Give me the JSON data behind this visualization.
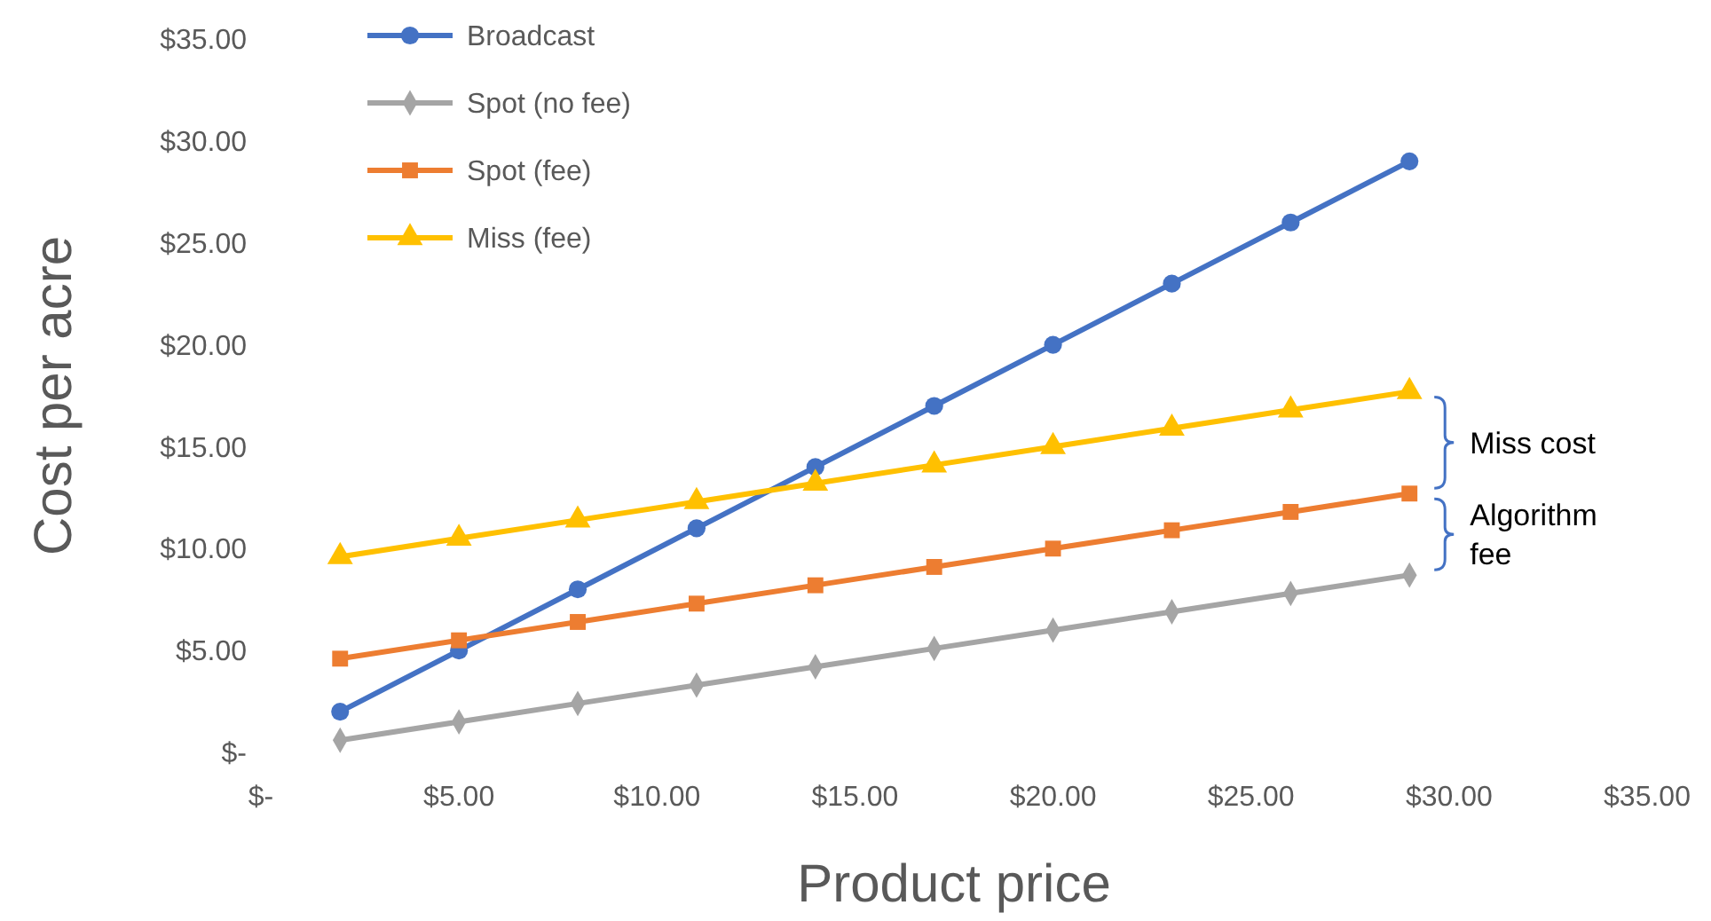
{
  "chart_data": {
    "type": "line",
    "xlabel": "Product price",
    "ylabel": "Cost per acre",
    "x": [
      2,
      5,
      8,
      11,
      14,
      17,
      20,
      23,
      26,
      29
    ],
    "xlim": [
      0,
      35
    ],
    "ylim": [
      0,
      35
    ],
    "xticks": [
      {
        "value": 0,
        "label": "$-"
      },
      {
        "value": 5,
        "label": "$5.00"
      },
      {
        "value": 10,
        "label": "$10.00"
      },
      {
        "value": 15,
        "label": "$15.00"
      },
      {
        "value": 20,
        "label": "$20.00"
      },
      {
        "value": 25,
        "label": "$25.00"
      },
      {
        "value": 30,
        "label": "$30.00"
      },
      {
        "value": 35,
        "label": "$35.00"
      }
    ],
    "yticks": [
      {
        "value": 0,
        "label": "$-"
      },
      {
        "value": 5,
        "label": "$5.00"
      },
      {
        "value": 10,
        "label": "$10.00"
      },
      {
        "value": 15,
        "label": "$15.00"
      },
      {
        "value": 20,
        "label": "$20.00"
      },
      {
        "value": 25,
        "label": "$25.00"
      },
      {
        "value": 30,
        "label": "$30.00"
      },
      {
        "value": 35,
        "label": "$35.00"
      }
    ],
    "grid": false,
    "legend": "top left",
    "line_style": "solid",
    "series": [
      {
        "name": "Broadcast",
        "color": "#4472c4",
        "marker": "circle",
        "values": [
          2,
          5,
          8,
          11,
          14,
          17,
          20,
          23,
          26,
          29
        ]
      },
      {
        "name": "Spot (no fee)",
        "color": "#a5a5a5",
        "marker": "diamond",
        "values": [
          0.6,
          1.5,
          2.4,
          3.3,
          4.2,
          5.1,
          6,
          6.9,
          7.8,
          8.7
        ]
      },
      {
        "name": "Spot (fee)",
        "color": "#ed7d31",
        "marker": "square",
        "values": [
          4.6,
          5.5,
          6.4,
          7.3,
          8.2,
          9.1,
          10,
          10.9,
          11.8,
          12.7
        ]
      },
      {
        "name": "Miss (fee)",
        "color": "#ffc000",
        "marker": "triangle",
        "values": [
          9.6,
          10.5,
          11.4,
          12.3,
          13.2,
          14.1,
          15,
          15.9,
          16.8,
          17.7
        ]
      }
    ],
    "annotations": [
      "Miss cost",
      "Algorithm fee"
    ]
  }
}
